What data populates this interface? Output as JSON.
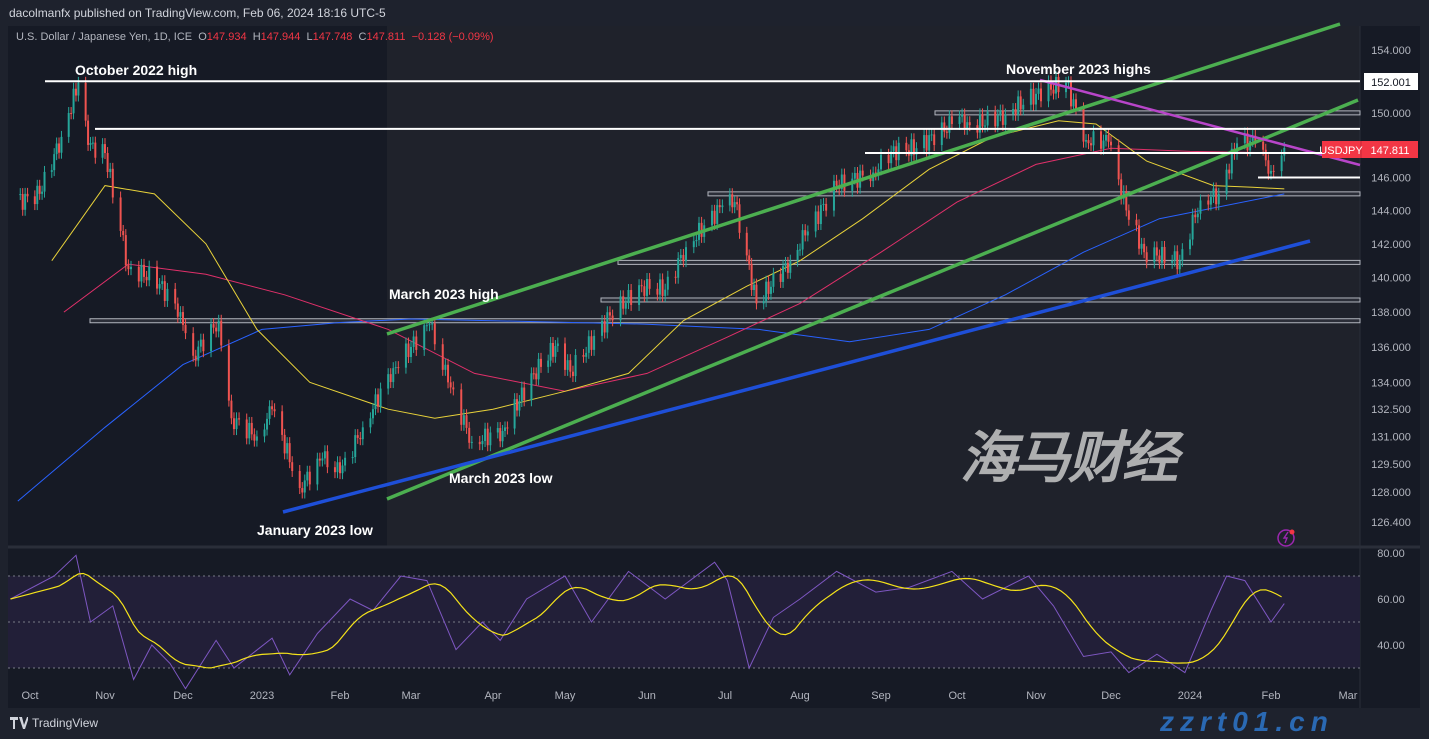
{
  "publisher": "dacolmanfx published on TradingView.com, Feb 06, 2024 18:16 UTC-5",
  "legend": {
    "symbol": "U.S. Dollar / Japanese Yen, 1D, ICE",
    "o_label": "O",
    "o": "147.934",
    "h_label": "H",
    "h": "147.944",
    "l_label": "L",
    "l": "147.748",
    "c_label": "C",
    "c": "147.811",
    "change": "−0.128 (−0.09%)"
  },
  "annotations": {
    "oct_high": "October 2022 high",
    "nov_highs": "November 2023 highs",
    "mar_high": "March 2023 high",
    "mar_low": "March 2023 low",
    "jan_low": "January 2023 low"
  },
  "price_labels": {
    "level": "152.001",
    "ticker": "USDJPY",
    "last": "147.811"
  },
  "footer": {
    "brand": "TradingView"
  },
  "watermark": {
    "cn": "海马财经",
    "url": "zzrt01.cn"
  },
  "colors": {
    "background": "#161a25",
    "up": "#26a69a",
    "down": "#ef5350",
    "sma50": "#e8d23a",
    "sma100": "#e0306a",
    "sma200": "#2962ff",
    "rsi": "#7e57c2",
    "rsi_ma": "#f5e31a",
    "channel": "#4caf50",
    "support": "#1e4fd8",
    "resistance": "#b845c9"
  },
  "chart_data": {
    "type": "candlestick",
    "symbol": "USDJPY",
    "interval": "1D",
    "y_scale": "log",
    "ylim": [
      125.5,
      155.5
    ],
    "price_ticks": [
      "154.000",
      "150.000",
      "146.000",
      "144.000",
      "142.000",
      "140.000",
      "138.000",
      "136.000",
      "134.000",
      "132.500",
      "131.000",
      "129.500",
      "128.000",
      "126.400"
    ],
    "time_ticks": [
      "Oct",
      "Nov",
      "Dec",
      "2023",
      "Feb",
      "Mar",
      "Apr",
      "May",
      "Jun",
      "Jul",
      "Aug",
      "Sep",
      "Oct",
      "Nov",
      "Dec",
      "2024",
      "Feb",
      "Mar"
    ],
    "closes": [
      [
        "2022-09-26",
        144.5
      ],
      [
        "2022-10-05",
        145.0
      ],
      [
        "2022-10-14",
        148.5
      ],
      [
        "2022-10-21",
        151.9
      ],
      [
        "2022-10-25",
        148.0
      ],
      [
        "2022-11-01",
        147.5
      ],
      [
        "2022-11-10",
        140.5
      ],
      [
        "2022-11-20",
        140.0
      ],
      [
        "2022-11-30",
        138.0
      ],
      [
        "2022-12-05",
        135.5
      ],
      [
        "2022-12-15",
        137.5
      ],
      [
        "2022-12-20",
        132.0
      ],
      [
        "2022-12-30",
        131.0
      ],
      [
        "2023-01-05",
        132.5
      ],
      [
        "2023-01-16",
        128.2
      ],
      [
        "2023-01-25",
        129.8
      ],
      [
        "2023-02-01",
        129.0
      ],
      [
        "2023-02-10",
        131.5
      ],
      [
        "2023-02-22",
        134.8
      ],
      [
        "2023-03-01",
        136.0
      ],
      [
        "2023-03-08",
        137.3
      ],
      [
        "2023-03-15",
        134.0
      ],
      [
        "2023-03-24",
        130.7
      ],
      [
        "2023-04-05",
        131.3
      ],
      [
        "2023-04-18",
        134.5
      ],
      [
        "2023-04-28",
        136.2
      ],
      [
        "2023-05-03",
        134.6
      ],
      [
        "2023-05-18",
        137.8
      ],
      [
        "2023-05-30",
        139.5
      ],
      [
        "2023-06-08",
        139.3
      ],
      [
        "2023-06-16",
        141.8
      ],
      [
        "2023-06-30",
        144.3
      ],
      [
        "2023-07-05",
        144.5
      ],
      [
        "2023-07-14",
        138.5
      ],
      [
        "2023-07-28",
        141.0
      ],
      [
        "2023-08-03",
        142.5
      ],
      [
        "2023-08-15",
        145.5
      ],
      [
        "2023-08-29",
        146.3
      ],
      [
        "2023-09-05",
        147.6
      ],
      [
        "2023-09-15",
        147.8
      ],
      [
        "2023-09-29",
        149.3
      ],
      [
        "2023-10-03",
        149.9
      ],
      [
        "2023-10-04",
        149.0
      ],
      [
        "2023-10-20",
        149.9
      ],
      [
        "2023-11-01",
        151.2
      ],
      [
        "2023-11-13",
        151.9
      ],
      [
        "2023-11-21",
        148.3
      ],
      [
        "2023-11-30",
        148.2
      ],
      [
        "2023-12-07",
        144.0
      ],
      [
        "2023-12-14",
        141.5
      ],
      [
        "2023-12-28",
        141.0
      ],
      [
        "2024-01-05",
        144.6
      ],
      [
        "2024-01-12",
        145.0
      ],
      [
        "2024-01-19",
        148.1
      ],
      [
        "2024-01-26",
        148.2
      ],
      [
        "2024-02-01",
        146.4
      ],
      [
        "2024-02-06",
        147.811
      ]
    ],
    "sma50": [
      [
        "2022-10-10",
        141
      ],
      [
        "2022-11-01",
        145.5
      ],
      [
        "2022-11-20",
        145
      ],
      [
        "2022-12-10",
        142
      ],
      [
        "2022-12-30",
        137
      ],
      [
        "2023-01-20",
        134
      ],
      [
        "2023-02-20",
        132.5
      ],
      [
        "2023-03-10",
        132
      ],
      [
        "2023-04-01",
        132.5
      ],
      [
        "2023-05-01",
        133.5
      ],
      [
        "2023-05-25",
        134.5
      ],
      [
        "2023-06-15",
        137.5
      ],
      [
        "2023-07-10",
        139.5
      ],
      [
        "2023-08-01",
        141
      ],
      [
        "2023-08-25",
        143.5
      ],
      [
        "2023-09-20",
        146.5
      ],
      [
        "2023-10-15",
        148.5
      ],
      [
        "2023-11-10",
        149.5
      ],
      [
        "2023-11-25",
        149.3
      ],
      [
        "2023-12-15",
        147
      ],
      [
        "2024-01-10",
        145.5
      ],
      [
        "2024-01-25",
        145.4
      ],
      [
        "2024-02-06",
        145.3
      ]
    ],
    "sma100": [
      [
        "2022-10-15",
        138
      ],
      [
        "2022-11-10",
        140.8
      ],
      [
        "2022-12-10",
        140.2
      ],
      [
        "2023-01-10",
        139
      ],
      [
        "2023-02-20",
        137
      ],
      [
        "2023-03-25",
        134.5
      ],
      [
        "2023-05-01",
        133.5
      ],
      [
        "2023-06-01",
        134.5
      ],
      [
        "2023-07-01",
        136.5
      ],
      [
        "2023-08-01",
        138.5
      ],
      [
        "2023-09-01",
        141.5
      ],
      [
        "2023-10-01",
        144.5
      ],
      [
        "2023-11-01",
        146.8
      ],
      [
        "2023-12-01",
        147.8
      ],
      [
        "2024-01-01",
        147.6
      ],
      [
        "2024-02-06",
        147.5
      ]
    ],
    "sma200": [
      [
        "2022-09-26",
        127.5
      ],
      [
        "2022-11-01",
        131.5
      ],
      [
        "2022-12-01",
        135
      ],
      [
        "2023-01-01",
        137
      ],
      [
        "2023-02-01",
        137.4
      ],
      [
        "2023-03-01",
        137.6
      ],
      [
        "2023-04-01",
        137.5
      ],
      [
        "2023-06-01",
        137.3
      ],
      [
        "2023-07-15",
        137
      ],
      [
        "2023-08-20",
        136.3
      ],
      [
        "2023-09-20",
        137
      ],
      [
        "2023-10-20",
        139
      ],
      [
        "2023-11-20",
        141.5
      ],
      [
        "2023-12-20",
        143.5
      ],
      [
        "2024-02-06",
        145
      ]
    ],
    "horizontal_levels": [
      152.001,
      149.0,
      147.5,
      146.0
    ],
    "zones": [
      150.0,
      145.0,
      140.9,
      138.7,
      137.5
    ],
    "rsi": {
      "ticks": [
        "80.00",
        "60.00",
        "40.00"
      ],
      "bands": [
        70,
        50,
        30
      ],
      "values": [
        [
          "2022-09-23",
          60
        ],
        [
          "2022-10-11",
          70
        ],
        [
          "2022-10-20",
          79
        ],
        [
          "2022-10-26",
          50
        ],
        [
          "2022-11-04",
          57
        ],
        [
          "2022-11-12",
          25
        ],
        [
          "2022-11-19",
          40
        ],
        [
          "2022-11-26",
          32
        ],
        [
          "2022-12-02",
          21
        ],
        [
          "2022-12-14",
          42
        ],
        [
          "2022-12-21",
          30
        ],
        [
          "2023-01-05",
          43
        ],
        [
          "2023-01-12",
          27
        ],
        [
          "2023-01-23",
          45
        ],
        [
          "2023-02-05",
          60
        ],
        [
          "2023-02-14",
          55
        ],
        [
          "2023-02-25",
          70
        ],
        [
          "2023-03-07",
          68
        ],
        [
          "2023-03-18",
          38
        ],
        [
          "2023-03-28",
          50
        ],
        [
          "2023-04-04",
          42
        ],
        [
          "2023-04-15",
          60
        ],
        [
          "2023-05-01",
          70
        ],
        [
          "2023-05-11",
          50
        ],
        [
          "2023-05-25",
          72
        ],
        [
          "2023-06-08",
          60
        ],
        [
          "2023-06-27",
          76
        ],
        [
          "2023-07-02",
          68
        ],
        [
          "2023-07-11",
          30
        ],
        [
          "2023-07-21",
          52
        ],
        [
          "2023-08-01",
          60
        ],
        [
          "2023-08-15",
          72
        ],
        [
          "2023-08-30",
          63
        ],
        [
          "2023-09-12",
          65
        ],
        [
          "2023-09-29",
          72
        ],
        [
          "2023-10-11",
          60
        ],
        [
          "2023-10-29",
          70
        ],
        [
          "2023-11-08",
          57
        ],
        [
          "2023-11-20",
          35
        ],
        [
          "2023-12-01",
          37
        ],
        [
          "2023-12-08",
          28
        ],
        [
          "2023-12-19",
          36
        ],
        [
          "2023-12-30",
          28
        ],
        [
          "2024-01-09",
          55
        ],
        [
          "2024-01-15",
          70
        ],
        [
          "2024-01-22",
          68
        ],
        [
          "2024-02-01",
          50
        ],
        [
          "2024-02-06",
          58
        ]
      ]
    }
  }
}
